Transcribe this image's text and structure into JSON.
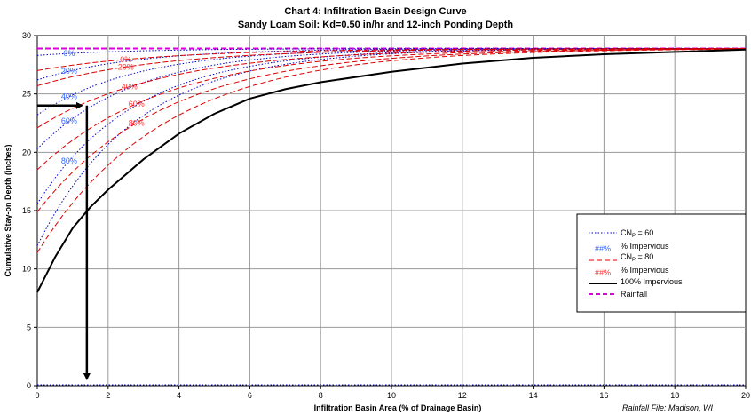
{
  "chart_data": {
    "type": "line",
    "title": "Chart 4: Infiltration Basin Design Curve",
    "subtitle": "Sandy Loam Soil: Kd=0.50 in/hr and 12-inch Ponding Depth",
    "xlabel": "Infiltration Basin Area (% of Drainage Basin)",
    "ylabel": "Cumulative Stay-on Depth (inches)",
    "note": "Rainfall File: Madison, WI",
    "xlim": [
      0,
      20
    ],
    "ylim": [
      0,
      30
    ],
    "x_ticks": [
      0,
      2,
      4,
      6,
      8,
      10,
      12,
      14,
      16,
      18,
      20
    ],
    "y_ticks": [
      0,
      5,
      10,
      15,
      20,
      25,
      30
    ],
    "grid": true,
    "legend_position": "right",
    "legend": {
      "cn60": "CN",
      "cn60_sub": "P",
      "cn60_suffix": " = 60",
      "pct_symbol": "##%",
      "pct_label": "% Impervious",
      "cn80": "CN",
      "cn80_sub": "P",
      "cn80_suffix": " = 80",
      "imp100": "100% Impervious",
      "rainfall": "Rainfall"
    },
    "series": [
      {
        "group": "CN60",
        "label": "0%",
        "y0": 28.3,
        "color": "#0000cc"
      },
      {
        "group": "CN60",
        "label": "20%",
        "y0": 26.2,
        "color": "#0000cc"
      },
      {
        "group": "CN60",
        "label": "40%",
        "y0": 23.2,
        "color": "#0000cc"
      },
      {
        "group": "CN60",
        "label": "60%",
        "y0": 20.3,
        "color": "#0000cc"
      },
      {
        "group": "CN60",
        "label": "80%",
        "y0": 15.6,
        "color": "#0000cc"
      },
      {
        "group": "CN60",
        "label": "",
        "y0": 12.0,
        "color": "#0000cc"
      },
      {
        "group": "CN80",
        "label": "0%",
        "y0": 27.0,
        "color": "#dd0000"
      },
      {
        "group": "CN80",
        "label": "20%",
        "y0": 25.7,
        "color": "#dd0000"
      },
      {
        "group": "CN80",
        "label": "40%",
        "y0": 22.1,
        "color": "#dd0000"
      },
      {
        "group": "CN80",
        "label": "60%",
        "y0": 18.5,
        "color": "#dd0000"
      },
      {
        "group": "CN80",
        "label": "80%",
        "y0": 14.9,
        "color": "#dd0000"
      },
      {
        "group": "CN80",
        "label": "",
        "y0": 11.4,
        "color": "#dd0000"
      }
    ],
    "impervious_100": {
      "name": "100% Impervious",
      "points": [
        [
          0,
          8.0
        ],
        [
          0.5,
          11.0
        ],
        [
          1,
          13.5
        ],
        [
          1.5,
          15.3
        ],
        [
          2,
          16.8
        ],
        [
          3,
          19.4
        ],
        [
          4,
          21.6
        ],
        [
          5,
          23.3
        ],
        [
          6,
          24.6
        ],
        [
          7,
          25.4
        ],
        [
          8,
          26.0
        ],
        [
          10,
          26.9
        ],
        [
          12,
          27.6
        ],
        [
          14,
          28.1
        ],
        [
          16,
          28.4
        ],
        [
          18,
          28.6
        ],
        [
          20,
          28.8
        ]
      ]
    },
    "rainfall": {
      "name": "Rainfall",
      "value": 28.9
    },
    "design_arrow": {
      "x": 1.4,
      "y": 24
    }
  },
  "colors": {
    "cn60": "#0000cc",
    "cn80": "#dd0000",
    "impervious": "#000000",
    "rainfall": "#dd00dd",
    "grid": "#999999"
  }
}
